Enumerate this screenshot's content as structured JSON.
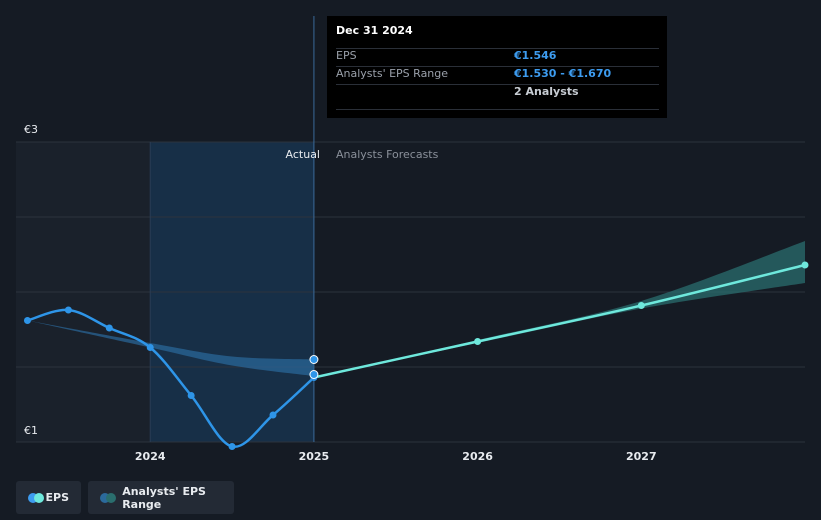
{
  "tooltip": {
    "date": "Dec 31 2024",
    "rows": [
      {
        "label": "EPS",
        "value": "€1.546"
      },
      {
        "label": "Analysts' EPS Range",
        "value": "€1.530 - €1.670"
      },
      {
        "label": "",
        "value": "2 Analysts"
      }
    ]
  },
  "labels": {
    "actual": "Actual",
    "forecast": "Analysts Forecasts"
  },
  "legend": {
    "eps": "EPS",
    "range": "Analysts' EPS Range"
  },
  "colors": {
    "actual_line": "#2e95e8",
    "forecast_line": "#6ee8dc",
    "range_fill": "#2b6a9c",
    "forecast_range_fill": "#2a6e6e",
    "highlight": "#173451",
    "background": "#151b24"
  },
  "chart_data": {
    "type": "line",
    "y_tick_labels": [
      "€3",
      "€1"
    ],
    "y_ticks": [
      3,
      1
    ],
    "ylim": [
      1,
      3
    ],
    "x_tick_labels": [
      "2024",
      "2025",
      "2026",
      "2027"
    ],
    "x_ticks": [
      2024,
      2025,
      2026,
      2027
    ],
    "xlim": [
      2023.18,
      2028.0
    ],
    "grid": true,
    "series": [
      {
        "name": "EPS",
        "kind": "actual",
        "points": [
          [
            2023.25,
            1.81
          ],
          [
            2023.5,
            1.88
          ],
          [
            2023.75,
            1.76
          ],
          [
            2024.0,
            1.63
          ],
          [
            2024.25,
            1.31
          ],
          [
            2024.5,
            0.97
          ],
          [
            2024.75,
            1.18
          ],
          [
            2025.0,
            1.43
          ]
        ]
      },
      {
        "name": "EPS",
        "kind": "forecast",
        "points": [
          [
            2025.0,
            1.43
          ],
          [
            2026.0,
            1.67
          ],
          [
            2027.0,
            1.91
          ],
          [
            2028.0,
            2.18
          ]
        ]
      }
    ],
    "ranges": [
      {
        "name": "Analysts' EPS Range",
        "kind": "actual",
        "x": [
          2023.25,
          2024.0,
          2024.5,
          2025.0
        ],
        "low": [
          1.81,
          1.63,
          1.51,
          1.44
        ],
        "high": [
          1.81,
          1.66,
          1.57,
          1.55
        ]
      },
      {
        "name": "Analysts' EPS Range",
        "kind": "forecast",
        "x": [
          2025.0,
          2026.0,
          2027.0,
          2028.0
        ],
        "low": [
          1.43,
          1.66,
          1.89,
          2.06
        ],
        "high": [
          1.43,
          1.68,
          1.94,
          2.34
        ]
      }
    ],
    "markers": [
      [
        2025.0,
        1.55
      ],
      [
        2025.0,
        1.45
      ]
    ]
  }
}
